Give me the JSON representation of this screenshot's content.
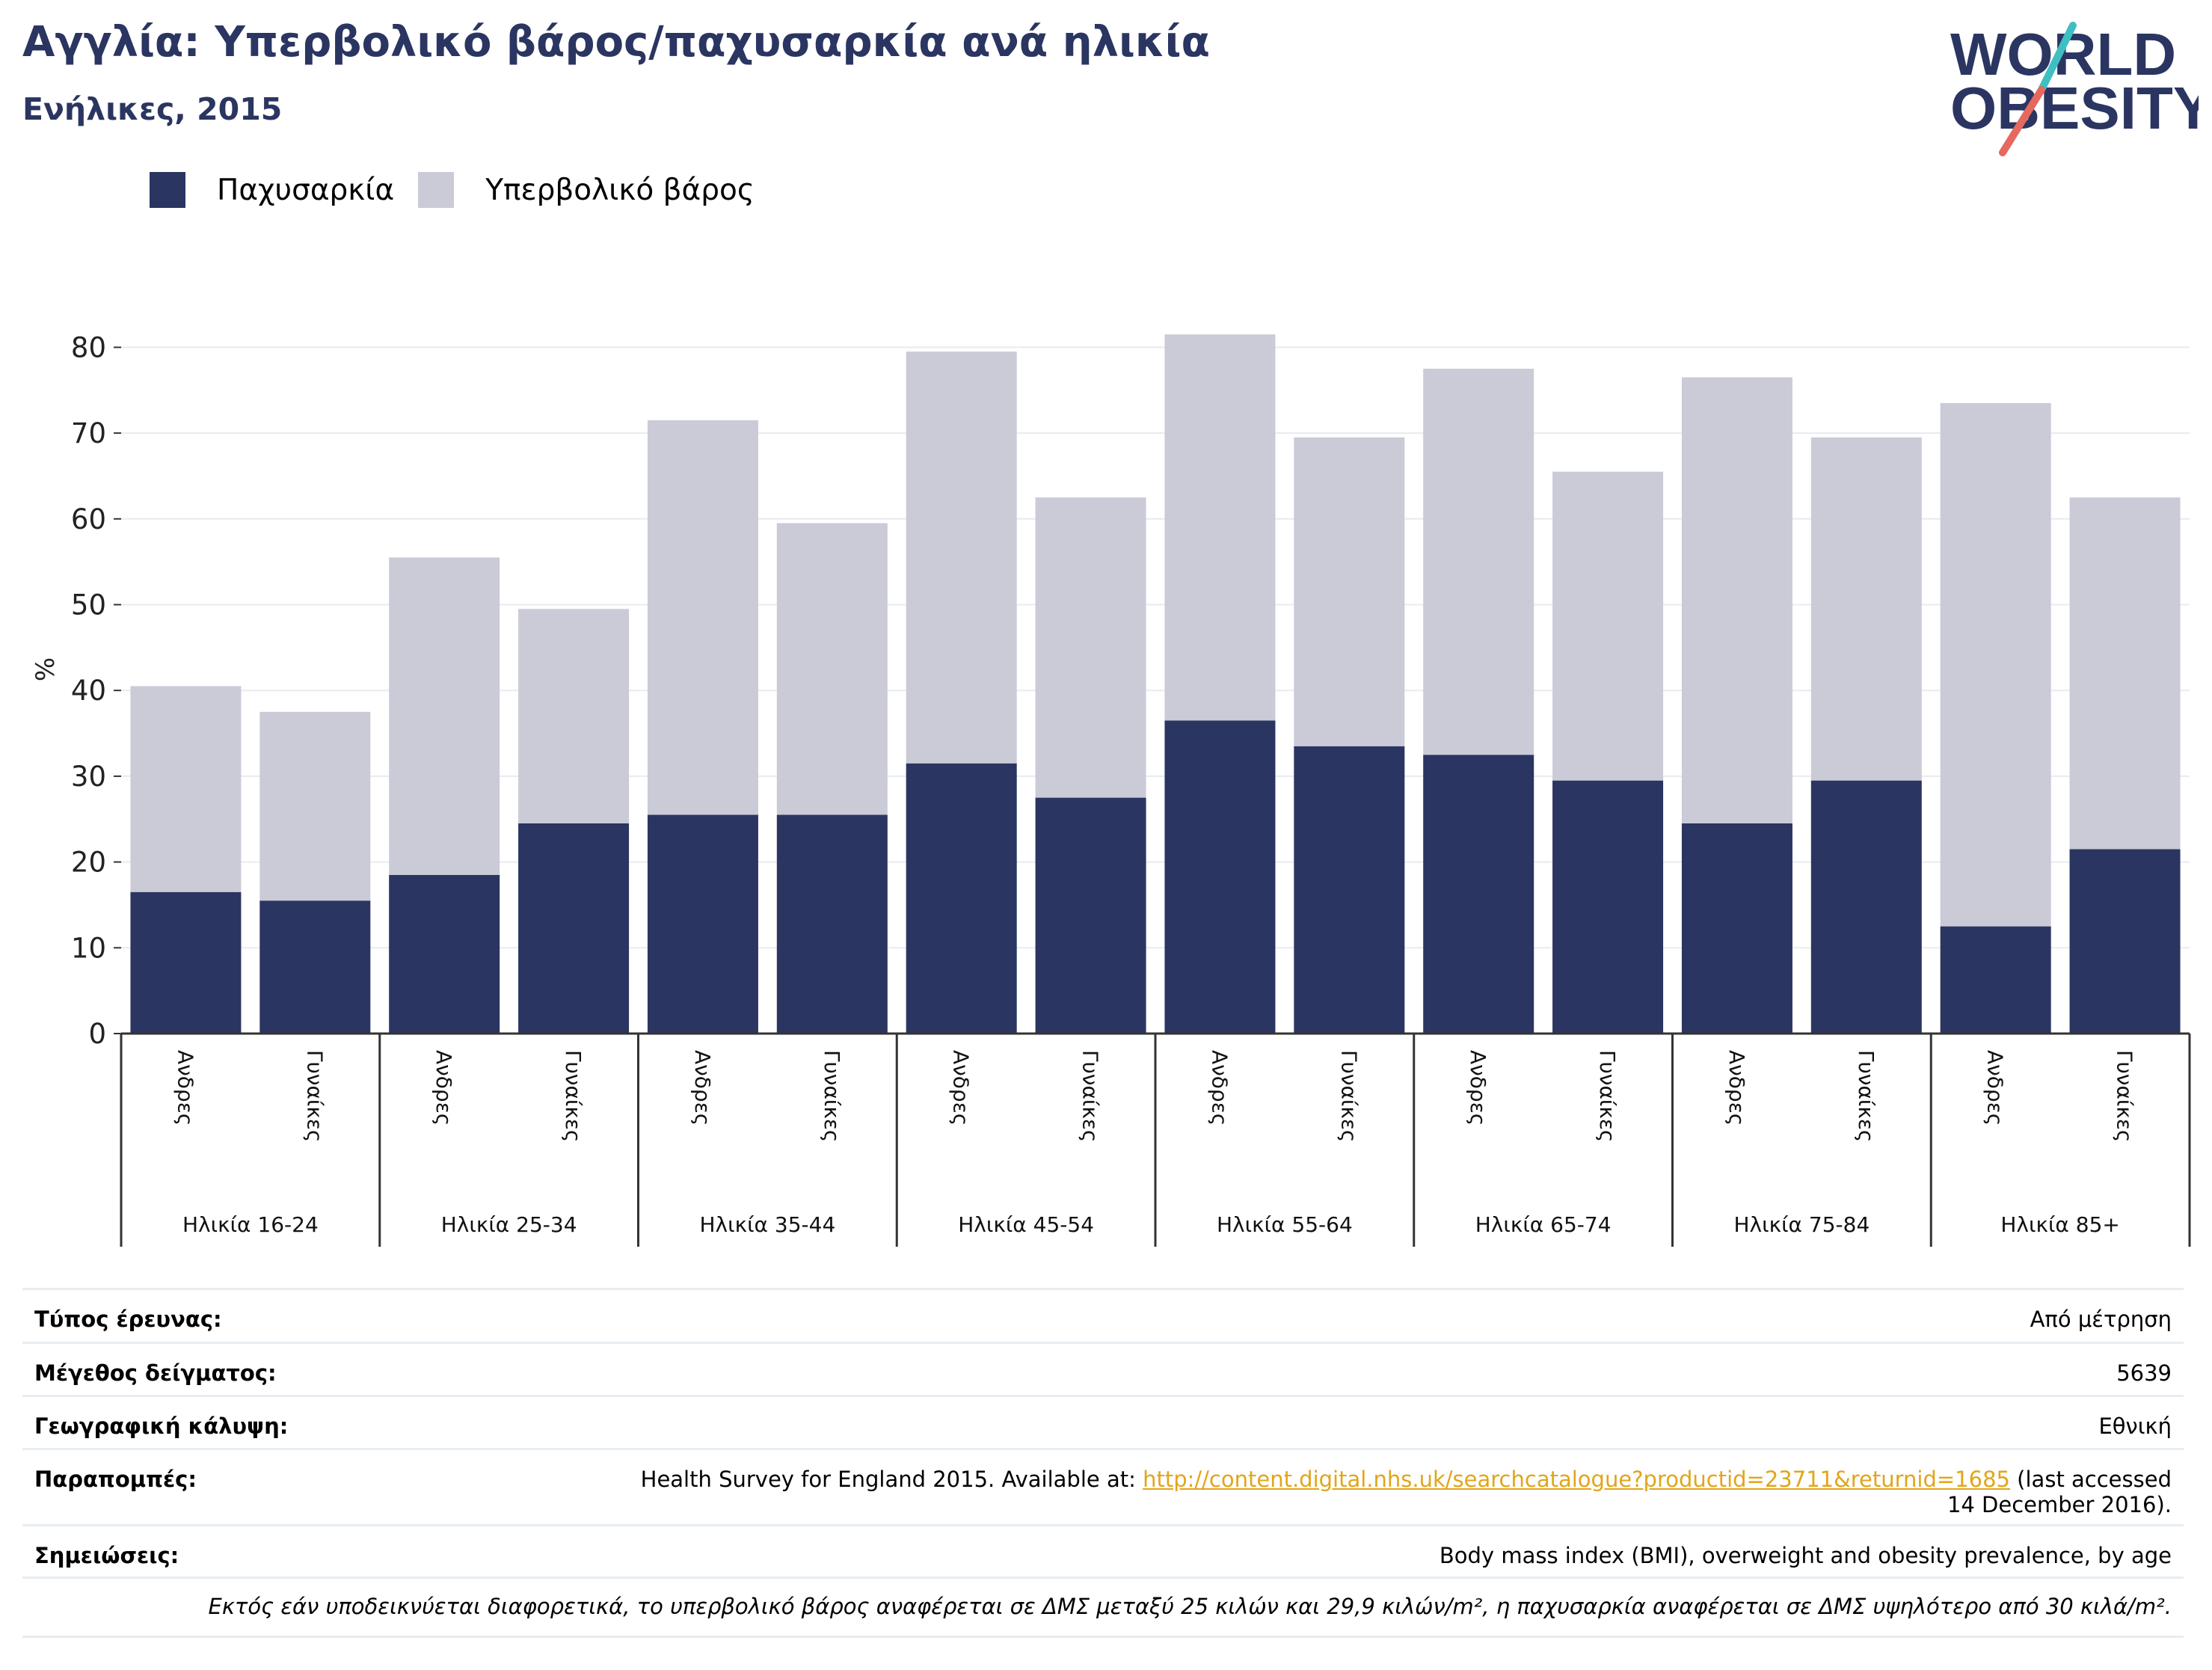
{
  "header": {
    "title": "Αγγλία: Υπερβολικό βάρος/παχυσαρκία ανά ηλικία",
    "subtitle": "Ενήλικες, 2015"
  },
  "logo": {
    "line1": "WORLD",
    "line2": "OBESITY"
  },
  "legend": [
    {
      "label": "Παχυσαρκία",
      "color": "#2b3561"
    },
    {
      "label": "Υπερβολικό βάρος",
      "color": "#cacbd7"
    }
  ],
  "chart_data": {
    "type": "bar",
    "stacked": true,
    "ylabel": "%",
    "ylim": [
      0,
      80
    ],
    "yticks": [
      0,
      10,
      20,
      30,
      40,
      50,
      60,
      70,
      80
    ],
    "grid": true,
    "groups": [
      "Ηλικία 16-24",
      "Ηλικία 25-34",
      "Ηλικία 35-44",
      "Ηλικία 45-54",
      "Ηλικία 55-64",
      "Ηλικία 65-74",
      "Ηλικία 75-84",
      "Ηλικία 85+"
    ],
    "sub_categories": [
      "Ανδρες",
      "Γυναίκες"
    ],
    "series": [
      {
        "name": "Παχυσαρκία",
        "color": "#2b3561",
        "values": [
          16.5,
          15.5,
          18.5,
          24.5,
          25.5,
          25.5,
          31.5,
          27.5,
          36.5,
          33.5,
          32.5,
          29.5,
          24.5,
          29.5,
          12.5,
          21.5
        ]
      },
      {
        "name": "Υπερβολικό βάρος",
        "color": "#cacbd7",
        "values": [
          24,
          22,
          37,
          25,
          46,
          34,
          48,
          35,
          45,
          36,
          45,
          36,
          52,
          40,
          61,
          41
        ]
      }
    ]
  },
  "meta": {
    "rows": [
      {
        "key": "Τύπος έρευνας:",
        "value": "Από μέτρηση"
      },
      {
        "key": "Μέγεθος δείγματος:",
        "value": "5639"
      },
      {
        "key": "Γεωγραφική κάλυψη:",
        "value": "Εθνική"
      }
    ],
    "references": {
      "key": "Παραπομπές:",
      "before": "Health Survey for England 2015. Available at: ",
      "link": "http://content.digital.nhs.uk/searchcatalogue?productid=23711&returnid=1685",
      "after": " (last accessed",
      "line2": "14 December 2016)."
    },
    "notes": {
      "key": "Σημειώσεις:",
      "value": "Body mass index (BMI), overweight and obesity prevalence, by age"
    },
    "footnote": "Εκτός εάν υποδεικνύεται διαφορετικά, το υπερβολικό βάρος αναφέρεται σε ΔΜΣ μεταξύ 25 κιλών και 29,9 κιλών/m², η παχυσαρκία αναφέρεται σε ΔΜΣ υψηλότερο από 30 κιλά/m²."
  }
}
